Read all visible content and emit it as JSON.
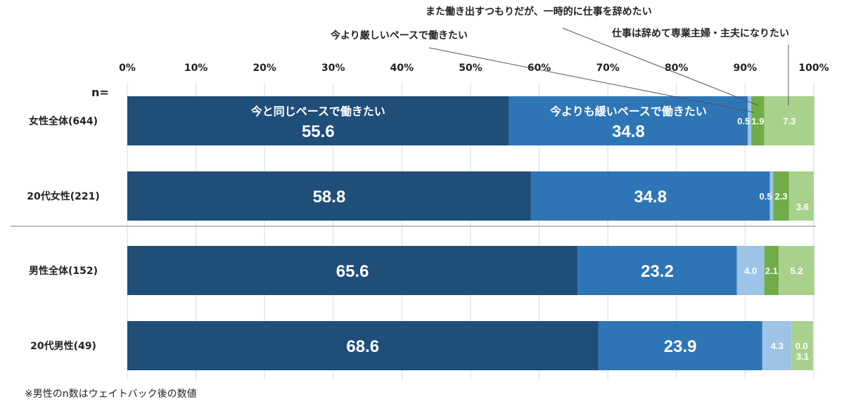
{
  "chart_data": {
    "type": "bar",
    "orientation": "horizontal",
    "stacked": true,
    "n_label": "n=",
    "categories": [
      "女性全体(644)",
      "20代女性(221)",
      "男性全体(152)",
      "20代男性(49)"
    ],
    "series": [
      {
        "name": "今と同じペースで働きたい",
        "color": "#1f4e79",
        "values": [
          55.6,
          58.8,
          65.6,
          68.6
        ]
      },
      {
        "name": "今よりも緩いペースで働きたい",
        "color": "#2e75b6",
        "values": [
          34.8,
          34.8,
          23.2,
          23.9
        ]
      },
      {
        "name": "今より厳しいペースで働きたい",
        "color": "#9dc3e6",
        "values": [
          0.5,
          0.5,
          4.0,
          4.3
        ]
      },
      {
        "name": "また働き出すつもりだが、一時的に仕事を辞めたい",
        "color": "#70ad47",
        "values": [
          1.9,
          2.3,
          2.1,
          0.0
        ]
      },
      {
        "name": "仕事は辞めて専業主婦・主夫になりたい",
        "color": "#a9d18e",
        "values": [
          7.3,
          3.6,
          5.2,
          3.1
        ]
      }
    ],
    "xlim": [
      0,
      100
    ],
    "xticks": [
      "0%",
      "10%",
      "20%",
      "30%",
      "40%",
      "50%",
      "60%",
      "70%",
      "80%",
      "90%",
      "100%"
    ],
    "grid": true,
    "legend": "callouts above and inside first bar",
    "footnote": "※男性のn数はウェイトバック後の数値"
  }
}
